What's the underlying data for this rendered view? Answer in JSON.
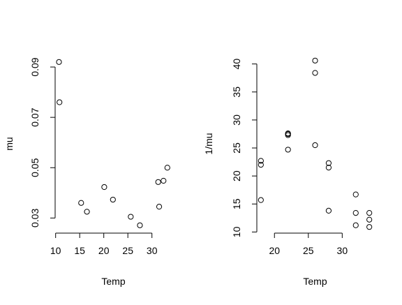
{
  "chart_data": [
    {
      "type": "scatter",
      "title": "",
      "xlabel": "Temp",
      "ylabel": "mu",
      "xlim": [
        9.9,
        34.1
      ],
      "ylim": [
        0.024,
        0.095
      ],
      "x_ticks": [
        "10",
        "15",
        "20",
        "25",
        "30"
      ],
      "y_ticks": [
        "0.03",
        "0.05",
        "0.07",
        "0.09"
      ],
      "grid": false,
      "legend": "none",
      "point_color": "#000000",
      "series": [
        {
          "x": [
            10.7,
            10.8,
            15.3,
            16.5,
            20.1,
            21.9,
            25.6,
            27.5,
            31.3,
            31.5,
            32.4,
            33.2
          ],
          "y": [
            0.092,
            0.076,
            0.036,
            0.0325,
            0.0423,
            0.0373,
            0.0305,
            0.0271,
            0.0443,
            0.0345,
            0.0448,
            0.05
          ]
        }
      ]
    },
    {
      "type": "scatter",
      "title": "",
      "xlabel": "Temp",
      "ylabel": "1/mu",
      "xlim": [
        17.4,
        34.6
      ],
      "ylim": [
        9.8,
        41.7
      ],
      "x_ticks": [
        "20",
        "25",
        "30"
      ],
      "y_ticks": [
        "10",
        "15",
        "20",
        "25",
        "30",
        "35",
        "40"
      ],
      "grid": false,
      "legend": "none",
      "point_color": "#000000",
      "series": [
        {
          "x": [
            18,
            18,
            18,
            22,
            22,
            22,
            22,
            26,
            26,
            26,
            28,
            28,
            28,
            32,
            32,
            32,
            34,
            34,
            34
          ],
          "y": [
            15.7,
            22.0,
            22.7,
            24.7,
            27.3,
            27.5,
            27.6,
            25.5,
            38.4,
            40.6,
            13.8,
            21.5,
            22.3,
            11.2,
            13.4,
            16.7,
            10.9,
            12.2,
            13.4
          ]
        }
      ]
    }
  ]
}
